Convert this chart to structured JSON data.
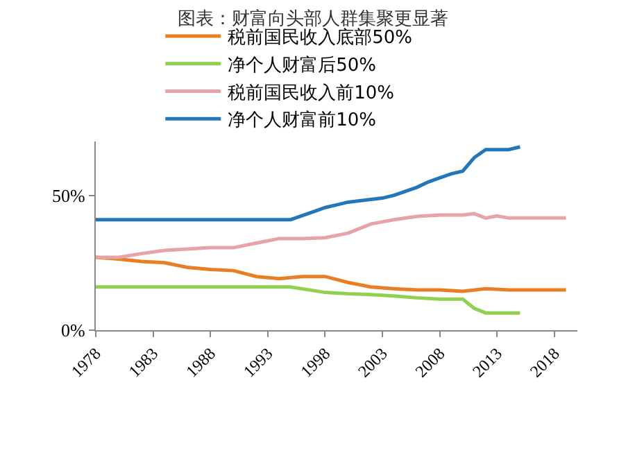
{
  "chart_data": {
    "type": "line",
    "title": "图表：财富向头部人群集聚更显著",
    "series": [
      {
        "name": "税前国民收入底部50%",
        "color": "#e97e25",
        "x": [
          1978,
          1980,
          1982,
          1984,
          1986,
          1988,
          1990,
          1992,
          1994,
          1996,
          1998,
          2000,
          2002,
          2004,
          2006,
          2008,
          2010,
          2012,
          2014,
          2016,
          2019
        ],
        "values": [
          27,
          26.4,
          25.5,
          25,
          23.3,
          22.5,
          22.1,
          19.9,
          19.1,
          19.9,
          19.9,
          17.7,
          16,
          15.4,
          14.9,
          14.9,
          14.4,
          15.4,
          14.9,
          14.9,
          14.9
        ]
      },
      {
        "name": "净个人财富后50%",
        "color": "#92d050",
        "x": [
          1978,
          1995,
          1998,
          2000,
          2002,
          2004,
          2006,
          2008,
          2010,
          2011,
          2012,
          2015
        ],
        "values": [
          16,
          16,
          14,
          13.5,
          13.2,
          12.7,
          12,
          11.5,
          11.5,
          8.1,
          6.4,
          6.4
        ]
      },
      {
        "name": "税前国民收入前10%",
        "color": "#e6a3a8",
        "x": [
          1978,
          1980,
          1982,
          1984,
          1986,
          1988,
          1990,
          1992,
          1994,
          1996,
          1998,
          2000,
          2002,
          2004,
          2006,
          2008,
          2010,
          2011,
          2012,
          2013,
          2014,
          2019
        ],
        "values": [
          27,
          27,
          28.4,
          29.6,
          30.1,
          30.6,
          30.6,
          32.3,
          34,
          34,
          34.3,
          36,
          39.4,
          41,
          42.2,
          42.7,
          42.7,
          43.2,
          41.6,
          42.4,
          41.6,
          41.6
        ]
      },
      {
        "name": "净个人财富前10%",
        "color": "#2376b7",
        "x": [
          1978,
          1995,
          1996,
          1997,
          1998,
          1999,
          2000,
          2001,
          2002,
          2003,
          2004,
          2005,
          2006,
          2007,
          2008,
          2009,
          2010,
          2011,
          2012,
          2013,
          2014,
          2015
        ],
        "values": [
          41,
          41,
          42.5,
          44,
          45.5,
          46.5,
          47.5,
          48,
          48.5,
          49,
          50,
          51.5,
          53,
          55,
          56.5,
          58,
          59,
          64,
          67,
          67,
          67,
          68
        ]
      }
    ],
    "xlim": [
      1978,
      2020
    ],
    "xticks": [
      1978,
      1983,
      1988,
      1993,
      1998,
      2003,
      2008,
      2013,
      2018
    ],
    "ylim": [
      0,
      70
    ],
    "yticks": [
      {
        "value": 0,
        "label": "0%"
      },
      {
        "value": 50,
        "label": "50%"
      }
    ],
    "grid": false,
    "legend": "top left",
    "marker": "none",
    "line_style": "solid"
  }
}
